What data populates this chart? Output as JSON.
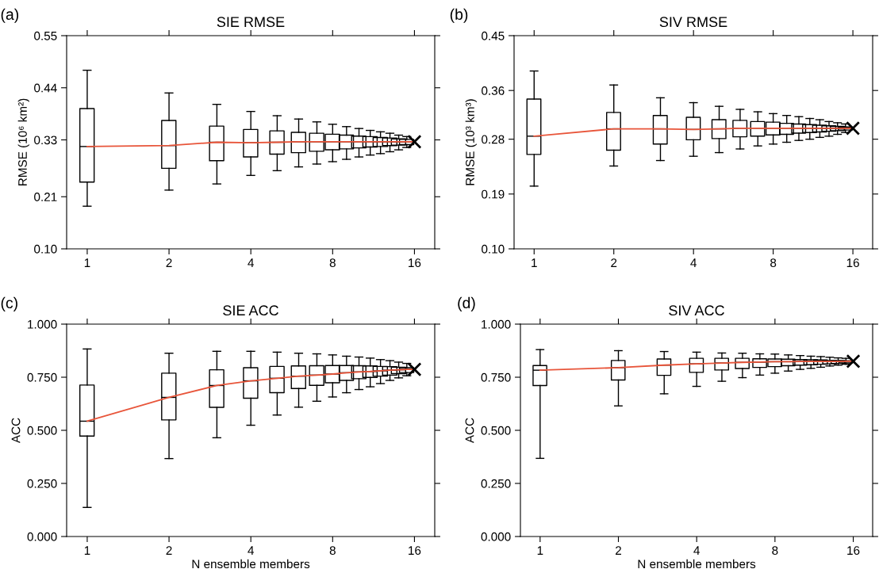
{
  "chart_data": [
    {
      "type": "box",
      "title": "SIE RMSE",
      "ylabel": "RMSE (10⁶ km²)",
      "annotations": [
        "(a)"
      ],
      "log": "x",
      "xlim": [
        0.84,
        19
      ],
      "xticks": [
        1,
        2,
        4,
        8,
        16
      ],
      "ylim": [
        0.1,
        0.55
      ],
      "yticks": [
        {
          "value": 0.1,
          "label": "0.10"
        },
        0.21,
        0.33,
        0.44,
        0.55
      ],
      "grid": false,
      "series": [
        {
          "color": "#000000",
          "x": [
            1,
            2,
            3,
            4,
            5,
            6,
            7,
            8,
            9,
            10,
            11,
            12,
            13,
            14,
            15
          ],
          "boxes": [
            {
              "low": 0.19,
              "q1": 0.241,
              "median": 0.316,
              "q3": 0.396,
              "high": 0.477
            },
            {
              "low": 0.224,
              "q1": 0.27,
              "median": 0.318,
              "q3": 0.371,
              "high": 0.429
            },
            {
              "low": 0.237,
              "q1": 0.286,
              "median": 0.325,
              "q3": 0.359,
              "high": 0.405
            },
            {
              "low": 0.255,
              "q1": 0.294,
              "median": 0.324,
              "q3": 0.352,
              "high": 0.39
            },
            {
              "low": 0.265,
              "q1": 0.3,
              "median": 0.325,
              "q3": 0.349,
              "high": 0.381
            },
            {
              "low": 0.273,
              "q1": 0.303,
              "median": 0.326,
              "q3": 0.346,
              "high": 0.374
            },
            {
              "low": 0.279,
              "q1": 0.306,
              "median": 0.326,
              "q3": 0.344,
              "high": 0.368
            },
            {
              "low": 0.284,
              "q1": 0.309,
              "median": 0.326,
              "q3": 0.342,
              "high": 0.363
            },
            {
              "low": 0.289,
              "q1": 0.311,
              "median": 0.326,
              "q3": 0.34,
              "high": 0.358
            },
            {
              "low": 0.294,
              "q1": 0.313,
              "median": 0.326,
              "q3": 0.338,
              "high": 0.354
            },
            {
              "low": 0.298,
              "q1": 0.315,
              "median": 0.326,
              "q3": 0.337,
              "high": 0.35
            },
            {
              "low": 0.301,
              "q1": 0.316,
              "median": 0.326,
              "q3": 0.335,
              "high": 0.347
            },
            {
              "low": 0.305,
              "q1": 0.318,
              "median": 0.326,
              "q3": 0.334,
              "high": 0.344
            },
            {
              "low": 0.309,
              "q1": 0.319,
              "median": 0.326,
              "q3": 0.332,
              "high": 0.34
            },
            {
              "low": 0.314,
              "q1": 0.32,
              "median": 0.326,
              "q3": 0.331,
              "high": 0.337
            }
          ]
        },
        {
          "type": "line",
          "color": "#e8553a",
          "x": [
            1,
            2,
            3,
            4,
            5,
            6,
            7,
            8,
            9,
            10,
            11,
            12,
            13,
            14,
            15,
            16
          ],
          "values": [
            0.316,
            0.318,
            0.325,
            0.324,
            0.325,
            0.326,
            0.326,
            0.326,
            0.326,
            0.326,
            0.326,
            0.326,
            0.326,
            0.326,
            0.326,
            0.326
          ]
        },
        {
          "type": "scatter",
          "marker": "cross",
          "color": "#000000",
          "x": [
            16
          ],
          "values": [
            0.326
          ]
        }
      ]
    },
    {
      "type": "box",
      "title": "SIV RMSE",
      "ylabel": "RMSE (10³ km³)",
      "annotations": [
        "(b)"
      ],
      "log": "x",
      "xlim": [
        0.84,
        19
      ],
      "xticks": [
        1,
        2,
        4,
        8,
        16
      ],
      "ylim": [
        0.1,
        0.45
      ],
      "yticks": [
        {
          "value": 0.1,
          "label": "0.10"
        },
        0.19,
        0.28,
        0.36,
        0.45
      ],
      "grid": false,
      "series": [
        {
          "color": "#000000",
          "x": [
            1,
            2,
            3,
            4,
            5,
            6,
            7,
            8,
            9,
            10,
            11,
            12,
            13,
            14,
            15
          ],
          "boxes": [
            {
              "low": 0.203,
              "q1": 0.255,
              "median": 0.285,
              "q3": 0.346,
              "high": 0.392
            },
            {
              "low": 0.236,
              "q1": 0.262,
              "median": 0.297,
              "q3": 0.324,
              "high": 0.369
            },
            {
              "low": 0.245,
              "q1": 0.272,
              "median": 0.297,
              "q3": 0.319,
              "high": 0.348
            },
            {
              "low": 0.252,
              "q1": 0.279,
              "median": 0.296,
              "q3": 0.316,
              "high": 0.34
            },
            {
              "low": 0.258,
              "q1": 0.281,
              "median": 0.297,
              "q3": 0.312,
              "high": 0.334
            },
            {
              "low": 0.264,
              "q1": 0.284,
              "median": 0.298,
              "q3": 0.311,
              "high": 0.329
            },
            {
              "low": 0.269,
              "q1": 0.285,
              "median": 0.298,
              "q3": 0.309,
              "high": 0.325
            },
            {
              "low": 0.272,
              "q1": 0.287,
              "median": 0.298,
              "q3": 0.308,
              "high": 0.322
            },
            {
              "low": 0.275,
              "q1": 0.288,
              "median": 0.298,
              "q3": 0.306,
              "high": 0.319
            },
            {
              "low": 0.278,
              "q1": 0.29,
              "median": 0.298,
              "q3": 0.305,
              "high": 0.317
            },
            {
              "low": 0.28,
              "q1": 0.291,
              "median": 0.298,
              "q3": 0.304,
              "high": 0.314
            },
            {
              "low": 0.283,
              "q1": 0.292,
              "median": 0.298,
              "q3": 0.303,
              "high": 0.312
            },
            {
              "low": 0.285,
              "q1": 0.293,
              "median": 0.298,
              "q3": 0.302,
              "high": 0.309
            },
            {
              "low": 0.288,
              "q1": 0.294,
              "median": 0.298,
              "q3": 0.301,
              "high": 0.307
            },
            {
              "low": 0.291,
              "q1": 0.295,
              "median": 0.298,
              "q3": 0.3,
              "high": 0.305
            }
          ]
        },
        {
          "type": "line",
          "color": "#e8553a",
          "x": [
            1,
            2,
            3,
            4,
            5,
            6,
            7,
            8,
            9,
            10,
            11,
            12,
            13,
            14,
            15,
            16
          ],
          "values": [
            0.285,
            0.297,
            0.297,
            0.296,
            0.297,
            0.298,
            0.298,
            0.298,
            0.298,
            0.298,
            0.298,
            0.298,
            0.298,
            0.298,
            0.298,
            0.298
          ]
        },
        {
          "type": "scatter",
          "marker": "cross",
          "color": "#000000",
          "x": [
            16
          ],
          "values": [
            0.298
          ]
        }
      ]
    },
    {
      "type": "box",
      "title": "SIE ACC",
      "xlabel": "N ensemble members",
      "ylabel": "ACC",
      "annotations": [
        "(c)"
      ],
      "log": "x",
      "xlim": [
        0.84,
        19
      ],
      "xticks": [
        1,
        2,
        4,
        8,
        16
      ],
      "ylim": [
        0,
        1
      ],
      "yticks": [
        {
          "value": 0,
          "label": "0.000"
        },
        {
          "value": 0.25,
          "label": "0.250"
        },
        {
          "value": 0.5,
          "label": "0.500"
        },
        {
          "value": 0.75,
          "label": "0.750"
        },
        {
          "value": 1,
          "label": "1.000"
        }
      ],
      "grid": false,
      "series": [
        {
          "color": "#000000",
          "x": [
            1,
            2,
            3,
            4,
            5,
            6,
            7,
            8,
            9,
            10,
            11,
            12,
            13,
            14,
            15
          ],
          "boxes": [
            {
              "low": 0.137,
              "q1": 0.473,
              "median": 0.543,
              "q3": 0.713,
              "high": 0.883
            },
            {
              "low": 0.367,
              "q1": 0.549,
              "median": 0.655,
              "q3": 0.769,
              "high": 0.863
            },
            {
              "low": 0.465,
              "q1": 0.608,
              "median": 0.711,
              "q3": 0.785,
              "high": 0.872
            },
            {
              "low": 0.524,
              "q1": 0.651,
              "median": 0.733,
              "q3": 0.795,
              "high": 0.872
            },
            {
              "low": 0.572,
              "q1": 0.677,
              "median": 0.745,
              "q3": 0.801,
              "high": 0.868
            },
            {
              "low": 0.609,
              "q1": 0.697,
              "median": 0.755,
              "q3": 0.803,
              "high": 0.863
            },
            {
              "low": 0.637,
              "q1": 0.712,
              "median": 0.76,
              "q3": 0.804,
              "high": 0.86
            },
            {
              "low": 0.657,
              "q1": 0.724,
              "median": 0.765,
              "q3": 0.805,
              "high": 0.855
            },
            {
              "low": 0.677,
              "q1": 0.735,
              "median": 0.771,
              "q3": 0.805,
              "high": 0.849
            },
            {
              "low": 0.692,
              "q1": 0.743,
              "median": 0.775,
              "q3": 0.804,
              "high": 0.845
            },
            {
              "low": 0.705,
              "q1": 0.749,
              "median": 0.777,
              "q3": 0.803,
              "high": 0.84
            },
            {
              "low": 0.72,
              "q1": 0.755,
              "median": 0.78,
              "q3": 0.801,
              "high": 0.833
            },
            {
              "low": 0.735,
              "q1": 0.76,
              "median": 0.783,
              "q3": 0.8,
              "high": 0.828
            },
            {
              "low": 0.747,
              "q1": 0.767,
              "median": 0.785,
              "q3": 0.797,
              "high": 0.821
            },
            {
              "low": 0.757,
              "q1": 0.772,
              "median": 0.787,
              "q3": 0.795,
              "high": 0.815
            }
          ]
        },
        {
          "type": "line",
          "color": "#e8553a",
          "x": [
            1,
            2,
            3,
            4,
            5,
            6,
            7,
            8,
            9,
            10,
            11,
            12,
            13,
            14,
            15,
            16
          ],
          "values": [
            0.543,
            0.655,
            0.711,
            0.733,
            0.745,
            0.755,
            0.76,
            0.765,
            0.771,
            0.775,
            0.777,
            0.78,
            0.783,
            0.785,
            0.787,
            0.787
          ]
        },
        {
          "type": "scatter",
          "marker": "cross",
          "color": "#000000",
          "x": [
            16
          ],
          "values": [
            0.787
          ]
        }
      ]
    },
    {
      "type": "box",
      "title": "SIV ACC",
      "xlabel": "N ensemble members",
      "ylabel": "ACC",
      "annotations": [
        "(d)"
      ],
      "log": "x",
      "xlim": [
        0.84,
        19
      ],
      "xticks": [
        1,
        2,
        4,
        8,
        16
      ],
      "ylim": [
        0,
        1
      ],
      "yticks": [
        {
          "value": 0,
          "label": "0.000"
        },
        {
          "value": 0.25,
          "label": "0.250"
        },
        {
          "value": 0.5,
          "label": "0.500"
        },
        {
          "value": 0.75,
          "label": "0.750"
        },
        {
          "value": 1,
          "label": "1.000"
        }
      ],
      "grid": false,
      "series": [
        {
          "color": "#000000",
          "x": [
            1,
            2,
            3,
            4,
            5,
            6,
            7,
            8,
            9,
            10,
            11,
            12,
            13,
            14,
            15
          ],
          "boxes": [
            {
              "low": 0.368,
              "q1": 0.711,
              "median": 0.783,
              "q3": 0.805,
              "high": 0.88
            },
            {
              "low": 0.615,
              "q1": 0.737,
              "median": 0.795,
              "q3": 0.829,
              "high": 0.875
            },
            {
              "low": 0.672,
              "q1": 0.759,
              "median": 0.807,
              "q3": 0.836,
              "high": 0.871
            },
            {
              "low": 0.707,
              "q1": 0.773,
              "median": 0.813,
              "q3": 0.839,
              "high": 0.868
            },
            {
              "low": 0.731,
              "q1": 0.784,
              "median": 0.817,
              "q3": 0.839,
              "high": 0.864
            },
            {
              "low": 0.748,
              "q1": 0.791,
              "median": 0.82,
              "q3": 0.839,
              "high": 0.863
            },
            {
              "low": 0.76,
              "q1": 0.796,
              "median": 0.821,
              "q3": 0.837,
              "high": 0.86
            },
            {
              "low": 0.769,
              "q1": 0.8,
              "median": 0.823,
              "q3": 0.836,
              "high": 0.859
            },
            {
              "low": 0.779,
              "q1": 0.804,
              "median": 0.823,
              "q3": 0.835,
              "high": 0.855
            },
            {
              "low": 0.787,
              "q1": 0.807,
              "median": 0.824,
              "q3": 0.833,
              "high": 0.852
            },
            {
              "low": 0.792,
              "q1": 0.809,
              "median": 0.824,
              "q3": 0.832,
              "high": 0.849
            },
            {
              "low": 0.797,
              "q1": 0.811,
              "median": 0.824,
              "q3": 0.831,
              "high": 0.847
            },
            {
              "low": 0.803,
              "q1": 0.813,
              "median": 0.824,
              "q3": 0.829,
              "high": 0.844
            },
            {
              "low": 0.807,
              "q1": 0.815,
              "median": 0.824,
              "q3": 0.829,
              "high": 0.841
            },
            {
              "low": 0.811,
              "q1": 0.817,
              "median": 0.825,
              "q3": 0.828,
              "high": 0.839
            }
          ]
        },
        {
          "type": "line",
          "color": "#e8553a",
          "x": [
            1,
            2,
            3,
            4,
            5,
            6,
            7,
            8,
            9,
            10,
            11,
            12,
            13,
            14,
            15,
            16
          ],
          "values": [
            0.783,
            0.795,
            0.807,
            0.813,
            0.817,
            0.82,
            0.821,
            0.823,
            0.823,
            0.824,
            0.824,
            0.824,
            0.824,
            0.824,
            0.825,
            0.825
          ]
        },
        {
          "type": "scatter",
          "marker": "cross",
          "color": "#000000",
          "x": [
            16
          ],
          "values": [
            0.825
          ]
        }
      ]
    }
  ]
}
